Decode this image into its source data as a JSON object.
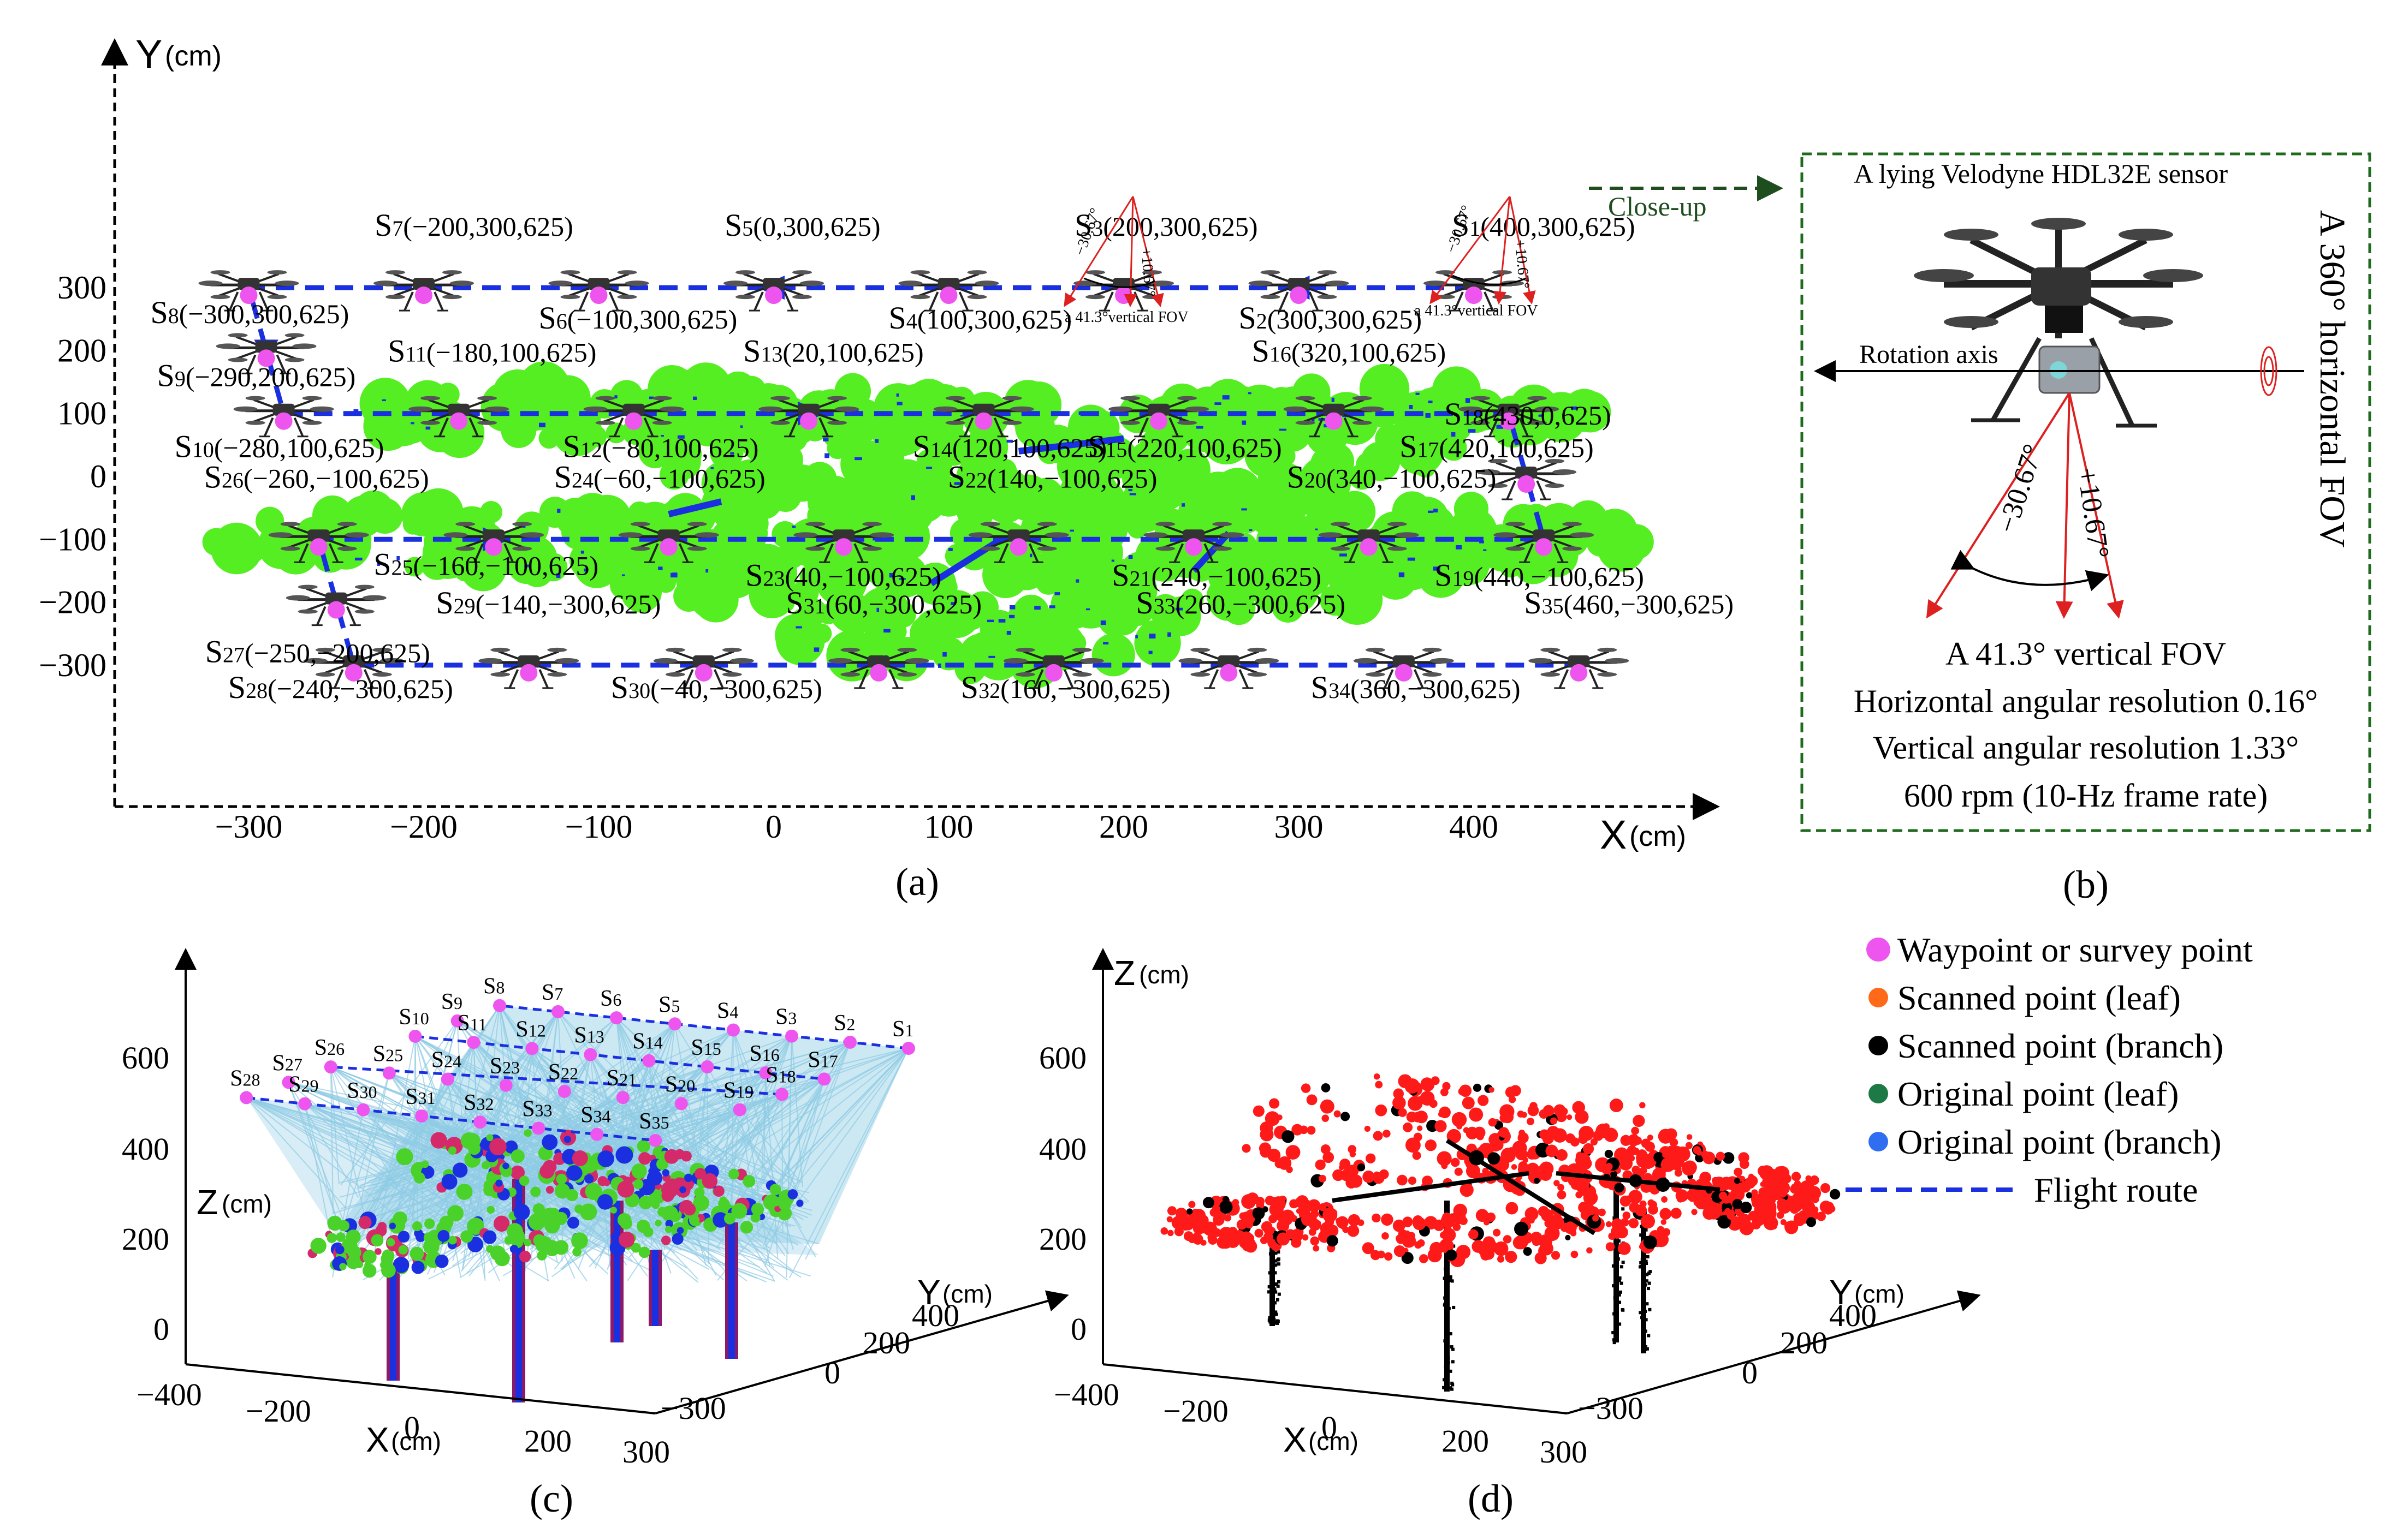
{
  "panel_a": {
    "axis_x_label": "X",
    "axis_y_label": "Y",
    "axis_unit": "(cm)",
    "x_ticks": [
      "−300",
      "−200",
      "−100",
      "0",
      "100",
      "200",
      "300",
      "400"
    ],
    "y_ticks": [
      "300",
      "200",
      "100",
      "0",
      "−100",
      "−200",
      "−300"
    ],
    "stations": [
      {
        "id": "S1",
        "x": 400,
        "y": 300,
        "z": 625
      },
      {
        "id": "S2",
        "x": 300,
        "y": 300,
        "z": 625
      },
      {
        "id": "S3",
        "x": 200,
        "y": 300,
        "z": 625
      },
      {
        "id": "S4",
        "x": 100,
        "y": 300,
        "z": 625
      },
      {
        "id": "S5",
        "x": 0,
        "y": 300,
        "z": 625
      },
      {
        "id": "S6",
        "x": -100,
        "y": 300,
        "z": 625
      },
      {
        "id": "S7",
        "x": -200,
        "y": 300,
        "z": 625
      },
      {
        "id": "S8",
        "x": -300,
        "y": 300,
        "z": 625
      },
      {
        "id": "S9",
        "x": -290,
        "y": 200,
        "z": 625
      },
      {
        "id": "S10",
        "x": -280,
        "y": 100,
        "z": 625
      },
      {
        "id": "S11",
        "x": -180,
        "y": 100,
        "z": 625
      },
      {
        "id": "S12",
        "x": -80,
        "y": 100,
        "z": 625
      },
      {
        "id": "S13",
        "x": 20,
        "y": 100,
        "z": 625
      },
      {
        "id": "S14",
        "x": 120,
        "y": 100,
        "z": 625
      },
      {
        "id": "S15",
        "x": 220,
        "y": 100,
        "z": 625
      },
      {
        "id": "S16",
        "x": 320,
        "y": 100,
        "z": 625
      },
      {
        "id": "S17",
        "x": 420,
        "y": 100,
        "z": 625
      },
      {
        "id": "S18",
        "x": 430,
        "y": 0,
        "z": 625
      },
      {
        "id": "S19",
        "x": 440,
        "y": -100,
        "z": 625
      },
      {
        "id": "S20",
        "x": 340,
        "y": -100,
        "z": 625
      },
      {
        "id": "S21",
        "x": 240,
        "y": -100,
        "z": 625
      },
      {
        "id": "S22",
        "x": 140,
        "y": -100,
        "z": 625
      },
      {
        "id": "S23",
        "x": 40,
        "y": -100,
        "z": 625
      },
      {
        "id": "S24",
        "x": -60,
        "y": -100,
        "z": 625
      },
      {
        "id": "S25",
        "x": -160,
        "y": -100,
        "z": 625
      },
      {
        "id": "S26",
        "x": -260,
        "y": -100,
        "z": 625
      },
      {
        "id": "S27",
        "x": -250,
        "y": -200,
        "z": 625
      },
      {
        "id": "S28",
        "x": -240,
        "y": -300,
        "z": 625
      },
      {
        "id": "S29",
        "x": -140,
        "y": -300,
        "z": 625
      },
      {
        "id": "S30",
        "x": -40,
        "y": -300,
        "z": 625
      },
      {
        "id": "S31",
        "x": 60,
        "y": -300,
        "z": 625
      },
      {
        "id": "S32",
        "x": 160,
        "y": -300,
        "z": 625
      },
      {
        "id": "S33",
        "x": 260,
        "y": -300,
        "z": 625
      },
      {
        "id": "S34",
        "x": 360,
        "y": -300,
        "z": 625
      },
      {
        "id": "S35",
        "x": 460,
        "y": -300,
        "z": 625
      }
    ],
    "fov_angle_down": "−30.67°",
    "fov_angle_up": "+10.67°",
    "fov_caption": "a 41.3°vertical FOV",
    "closeup_label": "Close-up",
    "caption": "(a)"
  },
  "panel_b": {
    "title": "A lying Velodyne HDL32E sensor",
    "horizontal_fov": "A 360° horizontal FOV",
    "rotation_axis": "Rotation axis",
    "angle_down": "−30.67°",
    "angle_up": "+10.67°",
    "vertical_fov": "A 41.3° vertical FOV",
    "h_res": "Horizontal angular resolution 0.16°",
    "v_res": "Vertical angular resolution 1.33°",
    "rpm": "600 rpm (10-Hz frame rate)",
    "caption": "(b)"
  },
  "panel_c": {
    "x_label": "X",
    "y_label": "Y",
    "z_label": "Z",
    "unit": "(cm)",
    "z_ticks": [
      "600",
      "400",
      "200",
      "0"
    ],
    "x_ticks": [
      "−400",
      "−200",
      "0",
      "200",
      "300"
    ],
    "y_ticks": [
      "−300",
      "0",
      "200",
      "400"
    ],
    "caption": "(c)"
  },
  "panel_d": {
    "x_label": "X",
    "y_label": "Y",
    "z_label": "Z",
    "unit": "(cm)",
    "z_ticks": [
      "600",
      "400",
      "200",
      "0"
    ],
    "x_ticks": [
      "−400",
      "−200",
      "0",
      "200",
      "300"
    ],
    "y_ticks": [
      "−300",
      "0",
      "200",
      "400"
    ],
    "caption": "(d)"
  },
  "legend": [
    {
      "label": "Waypoint or survey point",
      "color": "#ee55ee",
      "kind": "dot"
    },
    {
      "label": "Scanned point (leaf)",
      "color": "#ff6a1a",
      "kind": "dot"
    },
    {
      "label": "Scanned point (branch)",
      "color": "#000000",
      "kind": "dot"
    },
    {
      "label": "Original point (leaf)",
      "color": "#1d7a46",
      "kind": "dot"
    },
    {
      "label": "Original point (branch)",
      "color": "#2f6ef0",
      "kind": "dot"
    },
    {
      "label": "Flight route",
      "color": "#1a2fe0",
      "kind": "line"
    }
  ],
  "colors": {
    "route": "#1a2fe0",
    "canopy": "#55ee22",
    "branch": "#1a2fe0",
    "waypoint": "#ee55ee",
    "ray": "#8fcbe4",
    "scan_leaf": "#ff1a1a",
    "fov_ray": "#dd2020",
    "frame": "#1e6b1e",
    "closeup_arrow": "#1e4d1e"
  }
}
